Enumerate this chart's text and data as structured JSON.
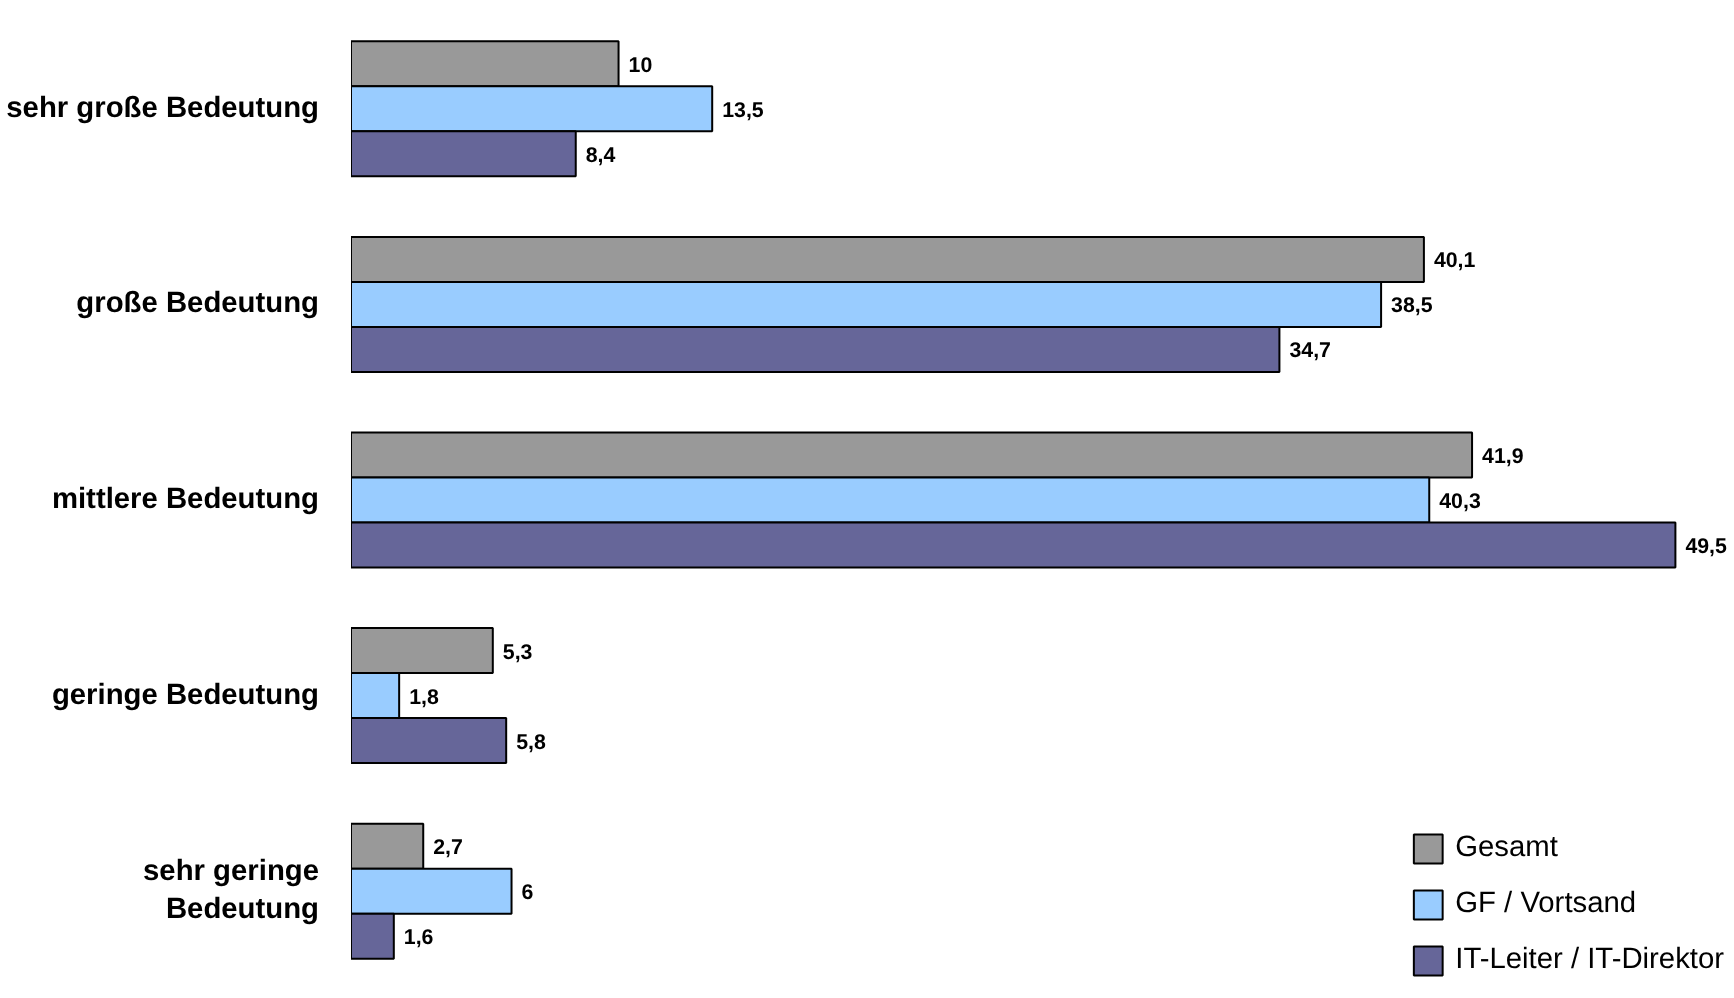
{
  "chart_data": {
    "type": "bar",
    "orientation": "horizontal",
    "categories": [
      "sehr große Bedeutung",
      "große Bedeutung",
      "mittlere Bedeutung",
      "geringe Bedeutung",
      "sehr geringe Bedeutung"
    ],
    "series": [
      {
        "name": "Gesamt",
        "color": "#999999",
        "values": [
          10,
          40.1,
          41.9,
          5.3,
          2.7
        ],
        "value_labels": [
          "10",
          "40,1",
          "41,9",
          "5,3",
          "2,7"
        ]
      },
      {
        "name": "GF / Vortsand",
        "color": "#99ccff",
        "values": [
          13.5,
          38.5,
          40.3,
          1.8,
          6
        ],
        "value_labels": [
          "13,5",
          "38,5",
          "40,3",
          "1,8",
          "6"
        ]
      },
      {
        "name": "IT-Leiter / IT-Direktor",
        "color": "#666699",
        "values": [
          8.4,
          34.7,
          49.5,
          5.8,
          1.6
        ],
        "value_labels": [
          "8,4",
          "34,7",
          "49,5",
          "5,8",
          "1,6"
        ]
      }
    ],
    "legend": "bottom right",
    "grid": false
  }
}
